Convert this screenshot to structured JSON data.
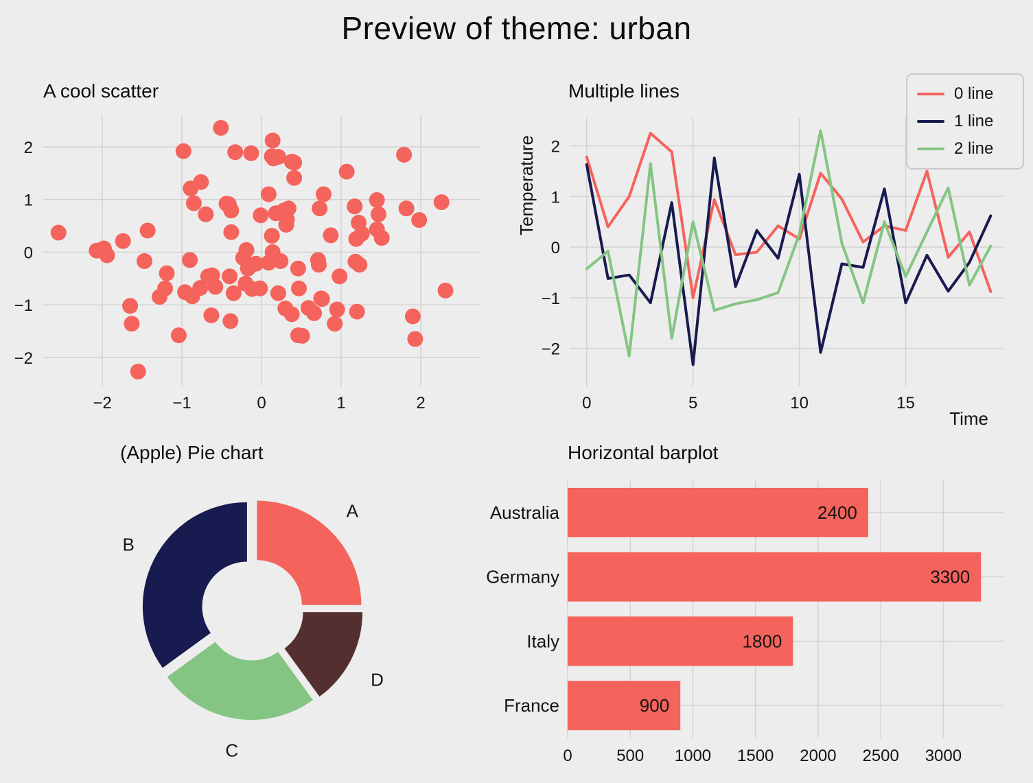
{
  "page_title": "Preview of theme: urban",
  "theme": {
    "background": "#EDEDED",
    "grid": "#D4D4D4",
    "text": "#141414",
    "salmon": "#F4635C",
    "navy": "#181B4F",
    "green": "#84C583",
    "maroon": "#542F2F",
    "legend_border": "#C9C9C9"
  },
  "chart_data": [
    {
      "id": "scatter",
      "type": "scatter",
      "title": "A cool scatter",
      "xlabel": "",
      "ylabel": "",
      "xticks": [
        -2,
        -1,
        0,
        1,
        2
      ],
      "yticks": [
        -2,
        -1,
        0,
        1,
        2
      ],
      "xlim": [
        -2.75,
        2.75
      ],
      "ylim": [
        -2.55,
        2.6
      ],
      "grid": true,
      "color_key": "salmon",
      "points": [
        [
          -2.55,
          0.37
        ],
        [
          -2.07,
          0.03
        ],
        [
          -1.98,
          0.07
        ],
        [
          -1.74,
          0.21
        ],
        [
          -1.43,
          0.41
        ],
        [
          -1.94,
          -0.06
        ],
        [
          -1.47,
          -0.17
        ],
        [
          -1.65,
          -1.02
        ],
        [
          -1.63,
          -1.36
        ],
        [
          -1.55,
          -2.27
        ],
        [
          -1.28,
          -0.85
        ],
        [
          -1.21,
          -0.69
        ],
        [
          -1.19,
          -0.4
        ],
        [
          -1.04,
          -1.58
        ],
        [
          -0.98,
          1.92
        ],
        [
          -0.96,
          -0.76
        ],
        [
          -0.9,
          -0.15
        ],
        [
          -0.89,
          1.21
        ],
        [
          -0.87,
          -0.84
        ],
        [
          -0.85,
          0.93
        ],
        [
          -0.77,
          -0.68
        ],
        [
          -0.76,
          1.33
        ],
        [
          -0.7,
          0.72
        ],
        [
          -0.67,
          -0.46
        ],
        [
          -0.63,
          -1.2
        ],
        [
          -0.62,
          -0.44
        ],
        [
          -0.58,
          -0.66
        ],
        [
          -0.51,
          2.36
        ],
        [
          -0.44,
          0.92
        ],
        [
          -0.41,
          0.91
        ],
        [
          -0.4,
          -0.46
        ],
        [
          -0.39,
          -1.31
        ],
        [
          -0.38,
          0.79
        ],
        [
          -0.38,
          0.38
        ],
        [
          -0.35,
          -0.78
        ],
        [
          -0.33,
          1.9
        ],
        [
          -0.23,
          -0.11
        ],
        [
          -0.2,
          -0.6
        ],
        [
          -0.19,
          0.04
        ],
        [
          -0.17,
          -0.31
        ],
        [
          -0.13,
          1.88
        ],
        [
          -0.12,
          -0.7
        ],
        [
          -0.07,
          -0.22
        ],
        [
          -0.02,
          -0.69
        ],
        [
          -0.01,
          0.7
        ],
        [
          0.09,
          1.1
        ],
        [
          0.09,
          -0.2
        ],
        [
          0.13,
          1.82
        ],
        [
          0.13,
          0.31
        ],
        [
          0.14,
          2.12
        ],
        [
          0.14,
          0.0
        ],
        [
          0.15,
          1.78
        ],
        [
          0.18,
          0.74
        ],
        [
          0.21,
          1.81
        ],
        [
          0.21,
          -0.78
        ],
        [
          0.24,
          -0.17
        ],
        [
          0.28,
          0.79
        ],
        [
          0.3,
          -1.07
        ],
        [
          0.31,
          0.52
        ],
        [
          0.32,
          0.62
        ],
        [
          0.34,
          0.83
        ],
        [
          0.38,
          1.72
        ],
        [
          0.38,
          -1.18
        ],
        [
          0.41,
          1.7
        ],
        [
          0.41,
          1.41
        ],
        [
          0.46,
          -0.31
        ],
        [
          0.46,
          -1.58
        ],
        [
          0.47,
          -0.69
        ],
        [
          0.51,
          -1.59
        ],
        [
          0.59,
          -1.06
        ],
        [
          0.66,
          -1.16
        ],
        [
          0.71,
          -0.15
        ],
        [
          0.72,
          -0.24
        ],
        [
          0.73,
          0.83
        ],
        [
          0.75,
          -0.88
        ],
        [
          0.76,
          -0.89
        ],
        [
          0.78,
          1.1
        ],
        [
          0.87,
          0.32
        ],
        [
          0.92,
          -1.36
        ],
        [
          0.95,
          -1.09
        ],
        [
          0.98,
          -0.46
        ],
        [
          1.07,
          1.53
        ],
        [
          1.17,
          0.87
        ],
        [
          1.18,
          -0.18
        ],
        [
          1.19,
          0.25
        ],
        [
          1.2,
          -1.13
        ],
        [
          1.22,
          0.56
        ],
        [
          1.23,
          -0.24
        ],
        [
          1.26,
          0.35
        ],
        [
          1.45,
          0.99
        ],
        [
          1.45,
          0.43
        ],
        [
          1.47,
          0.72
        ],
        [
          1.51,
          0.27
        ],
        [
          1.79,
          1.85
        ],
        [
          1.82,
          0.83
        ],
        [
          1.9,
          -1.22
        ],
        [
          1.93,
          -1.65
        ],
        [
          1.98,
          0.61
        ],
        [
          2.26,
          0.95
        ],
        [
          2.31,
          -0.73
        ]
      ]
    },
    {
      "id": "lines",
      "type": "line",
      "title": "Multiple lines",
      "xlabel": "Time",
      "ylabel": "Temperature",
      "xticks": [
        0,
        5,
        10,
        15
      ],
      "yticks": [
        -2,
        -1,
        0,
        1,
        2
      ],
      "xlim": [
        -0.8,
        19.6
      ],
      "ylim": [
        -2.75,
        2.55
      ],
      "grid": true,
      "legend_position": "upper right",
      "x": [
        0,
        1,
        2,
        3,
        4,
        5,
        6,
        7,
        8,
        9,
        10,
        11,
        12,
        13,
        14,
        15,
        16,
        17,
        18,
        19
      ],
      "series": [
        {
          "name": "0 line",
          "color_key": "salmon",
          "values": [
            1.78,
            0.4,
            1.0,
            2.25,
            1.88,
            -1.0,
            0.94,
            -0.15,
            -0.1,
            0.42,
            0.16,
            1.46,
            0.95,
            0.1,
            0.42,
            0.33,
            1.5,
            -0.2,
            0.3,
            -0.88
          ]
        },
        {
          "name": "1 line",
          "color_key": "navy",
          "values": [
            1.63,
            -0.62,
            -0.55,
            -1.1,
            0.88,
            -2.32,
            1.76,
            -0.78,
            0.33,
            -0.22,
            1.44,
            -2.08,
            -0.33,
            -0.4,
            1.15,
            -1.1,
            -0.16,
            -0.87,
            -0.3,
            0.62
          ]
        },
        {
          "name": "2 line",
          "color_key": "green",
          "values": [
            -0.43,
            -0.08,
            -2.15,
            1.65,
            -1.8,
            0.5,
            -1.25,
            -1.12,
            -1.04,
            -0.9,
            0.26,
            2.3,
            0.08,
            -1.1,
            0.5,
            -0.58,
            0.3,
            1.17,
            -0.75,
            0.02
          ]
        }
      ]
    },
    {
      "id": "pie",
      "type": "pie",
      "title": "(Apple) Pie chart",
      "labels": [
        "A",
        "B",
        "C",
        "D"
      ],
      "values": [
        25,
        35,
        25,
        15
      ],
      "color_keys": [
        "salmon",
        "navy",
        "green",
        "maroon"
      ],
      "start_angle": 0,
      "donut_ratio": 0.43,
      "explode": 0.06
    },
    {
      "id": "bars",
      "type": "bar",
      "orientation": "horizontal",
      "title": "Horizontal barplot",
      "categories": [
        "Australia",
        "Germany",
        "Italy",
        "France"
      ],
      "values": [
        2400,
        3300,
        1800,
        900
      ],
      "xticks": [
        0,
        500,
        1000,
        1500,
        2000,
        2500,
        3000
      ],
      "xlim": [
        0,
        3480
      ],
      "grid": true,
      "color_key": "salmon"
    }
  ]
}
